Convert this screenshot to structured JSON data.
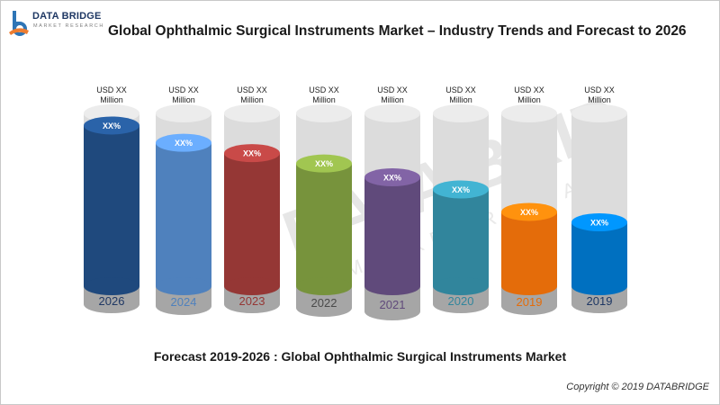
{
  "brand": {
    "name": "DATA BRIDGE",
    "tagline": "MARKET RESEARCH",
    "watermark_text": "DATA BRIDGE",
    "watermark_sub": "MARKET RESEARCH",
    "logo_colors": [
      "#2e75b6",
      "#ed7d31"
    ]
  },
  "title": "Global Ophthalmic Surgical Instruments Market – Industry Trends and Forecast to 2026",
  "subtitle": "Forecast 2019-2026 : Global Ophthalmic Surgical Instruments Market",
  "copyright": "Copyright © 2019 DATABRIDGE",
  "chart_data": {
    "type": "bar",
    "style": "3d-cylinder",
    "categories": [
      "2026",
      "2024",
      "2023",
      "2022",
      "2021",
      "2020",
      "2019",
      "2019"
    ],
    "values": [
      0.93,
      0.83,
      0.77,
      0.71,
      0.63,
      0.56,
      0.43,
      0.37
    ],
    "value_scale": "fraction of cylinder height",
    "top_labels": [
      [
        "USD  XX",
        "Million"
      ],
      [
        "USD  XX",
        "Million"
      ],
      [
        "USD  XX",
        "Million"
      ],
      [
        "USD XX",
        "Million"
      ],
      [
        "USD  XX",
        "Million"
      ],
      [
        "USD  XX",
        "Million"
      ],
      [
        "USD  XX",
        "Million"
      ],
      [
        "USD  XX",
        "Million"
      ]
    ],
    "cap_labels": [
      "XX%",
      "XX%",
      "XX%",
      "XX%",
      "XX%",
      "XX%",
      "XX%",
      "XX%"
    ],
    "colors": [
      "#1f497d",
      "#4f81bd",
      "#953735",
      "#77933c",
      "#604a7b",
      "#31859c",
      "#e46c0a",
      "#0070c0"
    ],
    "year_label_colors": [
      "#1f3864",
      "#4f81bd",
      "#953735",
      "#4a4a4a",
      "#604a7b",
      "#31859c",
      "#e46c0a",
      "#1f3864"
    ],
    "ghost_color": "#dcdcdc",
    "base_color": "#a6a6a6",
    "grid": false
  }
}
